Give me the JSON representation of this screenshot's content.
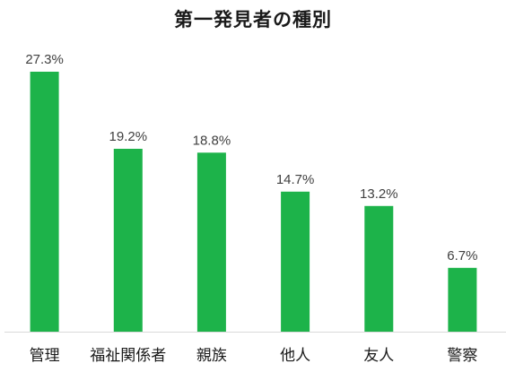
{
  "chart_data": {
    "type": "bar",
    "title": "第一発見者の種別",
    "categories": [
      "管理",
      "福祉関係者",
      "親族",
      "他人",
      "友人",
      "警察"
    ],
    "values": [
      27.3,
      19.2,
      18.8,
      14.7,
      13.2,
      6.7
    ],
    "data_labels": [
      "27.3%",
      "19.2%",
      "18.8%",
      "14.7%",
      "13.2%",
      "6.7%"
    ],
    "unit": "%",
    "xlabel": "",
    "ylabel": "",
    "ylim": [
      0,
      27.3
    ],
    "grid": false,
    "legend": "none",
    "bar_color": "#1db34a",
    "axis_color": "#d9d9d9"
  }
}
